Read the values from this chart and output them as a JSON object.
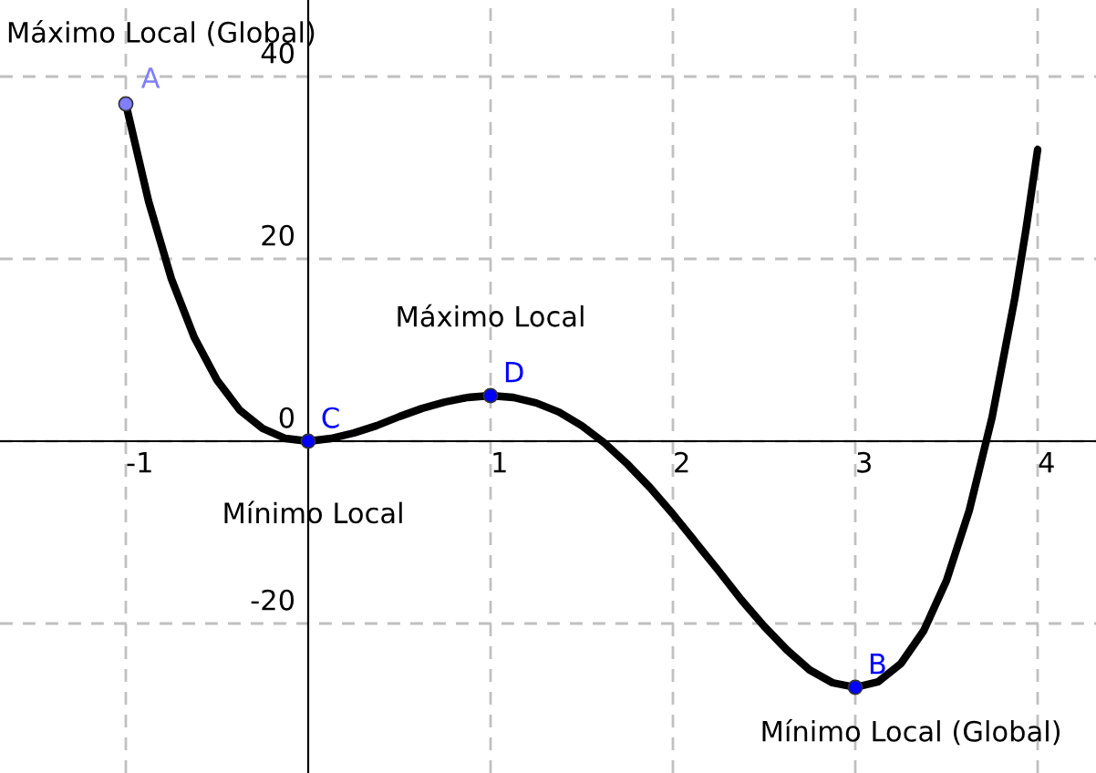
{
  "chart_data": {
    "type": "line",
    "x": [
      -1,
      -0.875,
      -0.75,
      -0.625,
      -0.5,
      -0.375,
      -0.25,
      -0.125,
      0,
      0.125,
      0.25,
      0.375,
      0.5,
      0.625,
      0.75,
      0.875,
      1,
      1.125,
      1.25,
      1.375,
      1.5,
      1.625,
      1.75,
      1.875,
      2,
      2.125,
      2.25,
      2.375,
      2.5,
      2.625,
      2.75,
      2.875,
      3,
      3.125,
      3.25,
      3.375,
      3.5,
      3.625,
      3.75,
      3.875,
      3.9375,
      4
    ],
    "series": [
      {
        "color": "#000000",
        "values": [
          37,
          26.3,
          17.8,
          11.4,
          6.7,
          3.4,
          1.4,
          0.3,
          0,
          0.3,
          0.9,
          1.7,
          2.7,
          3.6,
          4.3,
          4.8,
          5,
          4.8,
          4.2,
          3.2,
          1.7,
          -0.2,
          -2.5,
          -5.1,
          -8,
          -11.1,
          -14.2,
          -17.4,
          -20.3,
          -22.9,
          -25.1,
          -26.5,
          -27,
          -26.4,
          -24.4,
          -20.8,
          -15.3,
          -7.6,
          2.6,
          15.7,
          23.4,
          32
        ]
      },
      {
        "type": "scatter",
        "marker": "circle",
        "name": "A",
        "color": "#7f7fff",
        "x": [
          -1
        ],
        "values": [
          37
        ]
      },
      {
        "type": "scatter",
        "marker": "circle",
        "name": "C",
        "color": "#0000ff",
        "x": [
          0
        ],
        "values": [
          0
        ]
      },
      {
        "type": "scatter",
        "marker": "circle",
        "name": "D",
        "color": "#0000ff",
        "x": [
          1
        ],
        "values": [
          5
        ]
      },
      {
        "type": "scatter",
        "marker": "circle",
        "name": "B",
        "color": "#0000ff",
        "x": [
          3
        ],
        "values": [
          -27
        ]
      }
    ],
    "annotations": [
      {
        "text": "Máximo Local (Global)",
        "x": -1,
        "y": 37
      },
      {
        "text": "Mínimo Local",
        "x": 0,
        "y": 0
      },
      {
        "text": "Máximo Local",
        "x": 1,
        "y": 5
      },
      {
        "text": "Mínimo Local (Global)",
        "x": 3,
        "y": -27
      }
    ],
    "xlim": [
      -1.69,
      4.32
    ],
    "ylim": [
      -36.4,
      48.4
    ],
    "xticks": [
      -1,
      1,
      2,
      3,
      4
    ],
    "yticks": [
      -20,
      0,
      20,
      40
    ],
    "grid": true,
    "line_style": "solid"
  }
}
